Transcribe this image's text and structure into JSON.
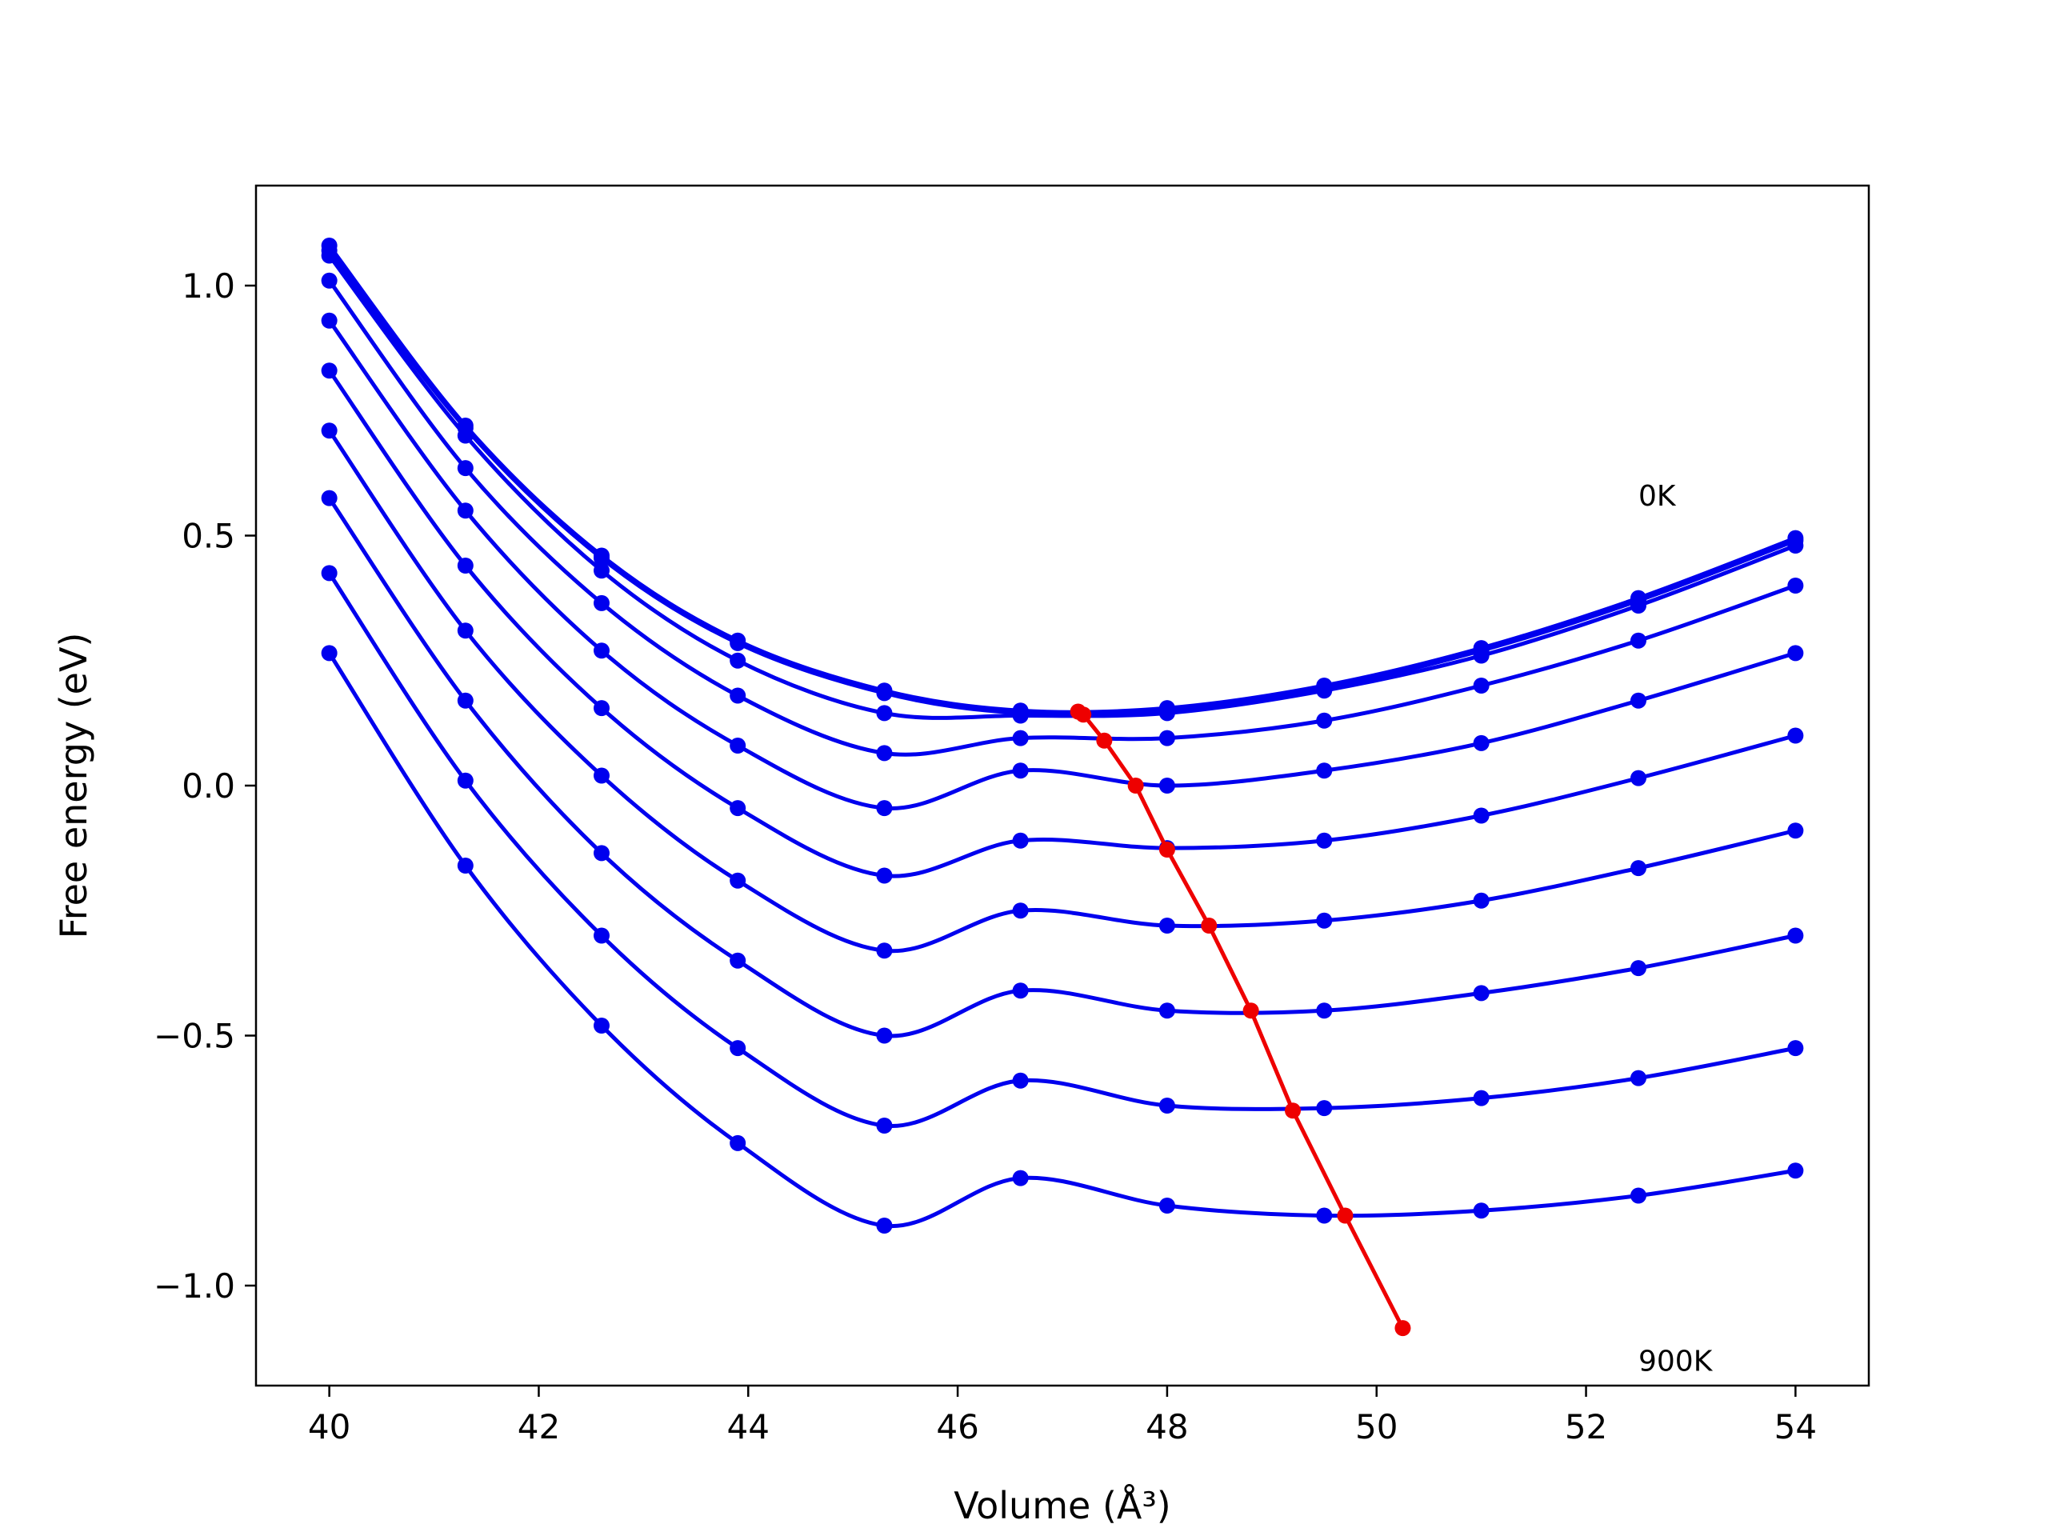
{
  "chart_data": {
    "type": "line",
    "xlabel": "Volume (Å³)",
    "ylabel": "Free energy (eV)",
    "xlim": [
      39.3,
      54.7
    ],
    "ylim": [
      -1.2,
      1.2
    ],
    "xticks": [
      40,
      42,
      44,
      46,
      48,
      50,
      52,
      54
    ],
    "yticks": [
      -1.0,
      -0.5,
      0.0,
      0.5,
      1.0
    ],
    "ytick_labels": [
      "−1.0",
      "−0.5",
      "0.0",
      "0.5",
      "1.0"
    ],
    "grid": false,
    "annotations": [
      {
        "text": "0K",
        "x": 52.5,
        "y": 0.56
      },
      {
        "text": "900K",
        "x": 52.5,
        "y": -1.17
      }
    ],
    "x": [
      40.0,
      41.3,
      42.6,
      43.9,
      45.3,
      46.6,
      48.0,
      49.5,
      51.0,
      52.5,
      54.0
    ],
    "series": [
      {
        "color": "#0000ee",
        "values": [
          1.08,
          0.72,
          0.46,
          0.29,
          0.19,
          0.15,
          0.155,
          0.2,
          0.275,
          0.375,
          0.495
        ]
      },
      {
        "color": "#0000ee",
        "values": [
          1.07,
          0.715,
          0.455,
          0.285,
          0.185,
          0.145,
          0.15,
          0.195,
          0.27,
          0.37,
          0.49
        ]
      },
      {
        "color": "#0000ee",
        "values": [
          1.06,
          0.7,
          0.43,
          0.25,
          0.145,
          0.14,
          0.145,
          0.19,
          0.26,
          0.36,
          0.48
        ]
      },
      {
        "color": "#0000ee",
        "values": [
          1.01,
          0.635,
          0.365,
          0.18,
          0.065,
          0.095,
          0.095,
          0.13,
          0.2,
          0.29,
          0.4
        ]
      },
      {
        "color": "#0000ee",
        "values": [
          0.93,
          0.55,
          0.27,
          0.08,
          -0.045,
          0.03,
          0.0,
          0.03,
          0.085,
          0.17,
          0.265
        ]
      },
      {
        "color": "#0000ee",
        "values": [
          0.83,
          0.44,
          0.155,
          -0.045,
          -0.18,
          -0.11,
          -0.125,
          -0.11,
          -0.06,
          0.015,
          0.1
        ]
      },
      {
        "color": "#0000ee",
        "values": [
          0.71,
          0.31,
          0.02,
          -0.19,
          -0.33,
          -0.25,
          -0.28,
          -0.27,
          -0.23,
          -0.165,
          -0.09
        ]
      },
      {
        "color": "#0000ee",
        "values": [
          0.575,
          0.17,
          -0.135,
          -0.35,
          -0.5,
          -0.41,
          -0.45,
          -0.45,
          -0.415,
          -0.365,
          -0.3
        ]
      },
      {
        "color": "#0000ee",
        "values": [
          0.425,
          0.01,
          -0.3,
          -0.525,
          -0.68,
          -0.59,
          -0.64,
          -0.645,
          -0.625,
          -0.585,
          -0.525
        ]
      },
      {
        "color": "#0000ee",
        "values": [
          0.265,
          -0.16,
          -0.48,
          -0.715,
          -0.88,
          -0.785,
          -0.84,
          -0.86,
          -0.85,
          -0.82,
          -0.77
        ]
      }
    ],
    "minima": {
      "color": "#ee0000",
      "x": [
        47.15,
        47.2,
        47.4,
        47.7,
        48.0,
        48.4,
        48.8,
        49.2,
        49.7,
        50.25
      ],
      "y": [
        0.148,
        0.142,
        0.09,
        0.0,
        -0.128,
        -0.28,
        -0.45,
        -0.65,
        -0.86,
        -1.085
      ]
    }
  }
}
